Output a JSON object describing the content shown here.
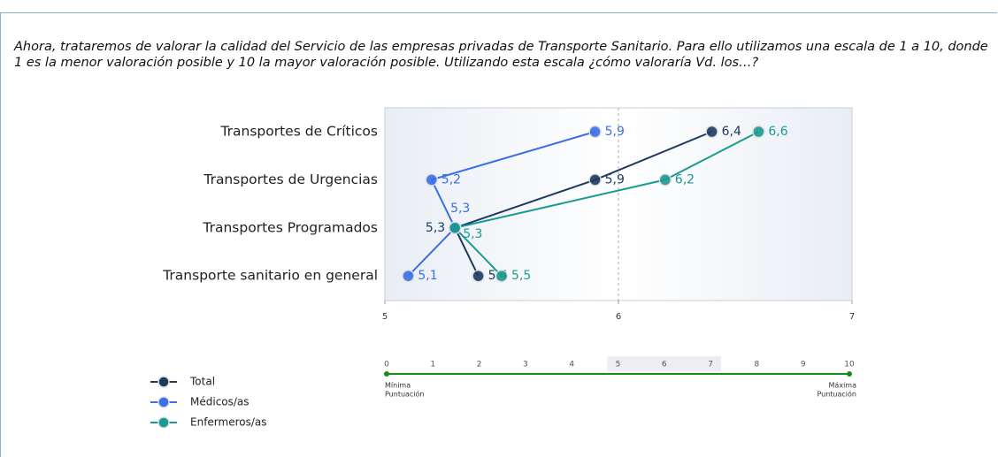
{
  "chart_data": {
    "type": "line",
    "orientation": "horizontal",
    "title": "Ahora, trataremos de valorar la calidad del Servicio de las empresas privadas de Transporte Sanitario. Para ello utilizamos una escala de 1 a 10, donde 1 es la menor valoración posible y 10 la mayor valoración posible. Utilizando esta escala ¿cómo valoraría Vd. los…?",
    "categories": [
      "Transportes de Críticos",
      "Transportes de Urgencias",
      "Transportes Programados",
      "Transporte sanitario en general"
    ],
    "series": [
      {
        "name": "Total",
        "color": "#1f3a60",
        "values": [
          6.4,
          5.9,
          5.3,
          5.4
        ],
        "value_labels": [
          "6,4",
          "5,9",
          "5,3",
          "5,4"
        ]
      },
      {
        "name": "Médicos/as",
        "color": "#3b6fe6",
        "values": [
          5.9,
          5.2,
          5.3,
          5.1
        ],
        "value_labels": [
          "5,9",
          "5,2",
          "5,3",
          "5,1"
        ]
      },
      {
        "name": "Enfermeros/as",
        "color": "#1a9a90",
        "values": [
          6.6,
          6.2,
          5.3,
          5.5
        ],
        "value_labels": [
          "6,6",
          "6,2",
          "5,3",
          "5,5"
        ]
      }
    ],
    "xlim": [
      5,
      7
    ],
    "xticks": [
      5,
      6,
      7
    ],
    "grid": true,
    "legend": "bottom-left",
    "scale": {
      "ticks": [
        0,
        1,
        2,
        3,
        4,
        5,
        6,
        7,
        8,
        9,
        10
      ],
      "highlight": [
        5,
        7
      ],
      "min_label": [
        "Mínima",
        "Puntuación"
      ],
      "max_label": [
        "Máxima",
        "Puntuación"
      ],
      "color": "#1a8a1a"
    }
  }
}
